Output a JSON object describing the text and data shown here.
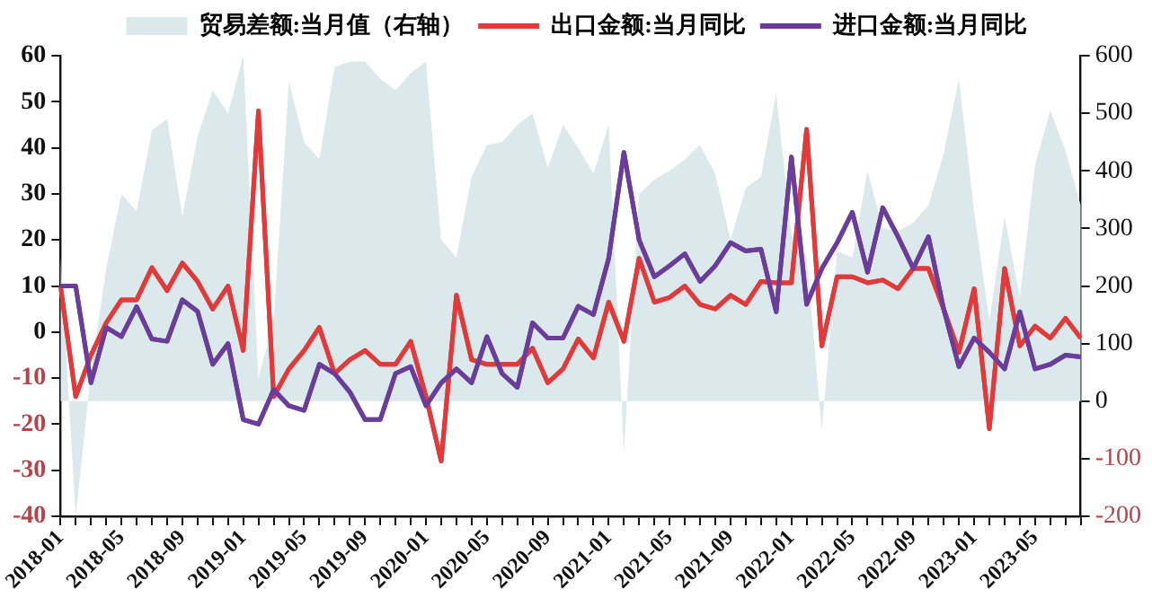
{
  "chart_data": {
    "type": "line",
    "categories": [
      "2018-01",
      null,
      null,
      null,
      "2018-05",
      null,
      null,
      null,
      "2018-09",
      null,
      null,
      null,
      "2019-01",
      null,
      null,
      null,
      "2019-05",
      null,
      null,
      null,
      "2019-09",
      null,
      null,
      null,
      "2020-01",
      null,
      null,
      null,
      "2020-05",
      null,
      null,
      null,
      "2020-09",
      null,
      null,
      null,
      "2021-01",
      null,
      null,
      null,
      "2021-05",
      null,
      null,
      null,
      "2021-09",
      null,
      null,
      null,
      "2022-01",
      null,
      null,
      null,
      "2022-05",
      null,
      null,
      null,
      "2022-09",
      null,
      null,
      null,
      "2023-01",
      null,
      null,
      null,
      "2023-05",
      null,
      null,
      null
    ],
    "series": [
      {
        "name": "贸易差额:当月值（右轴）",
        "type": "area",
        "axis": "y2",
        "color": "#dce9ec",
        "values": [
          250,
          -200,
          50,
          230,
          360,
          330,
          470,
          490,
          320,
          460,
          540,
          500,
          600,
          40,
          140,
          555,
          450,
          420,
          580,
          590,
          590,
          560,
          540,
          570,
          590,
          280,
          250,
          390,
          445,
          450,
          480,
          500,
          405,
          480,
          440,
          395,
          480,
          -90,
          360,
          385,
          400,
          420,
          445,
          395,
          280,
          370,
          390,
          535,
          290,
          250,
          -50,
          260,
          250,
          400,
          300,
          295,
          310,
          340,
          430,
          560,
          330,
          140,
          320,
          180,
          410,
          505,
          435,
          340
        ]
      },
      {
        "name": "出口金额:当月同比",
        "type": "line",
        "color": "#e03a3a",
        "values": [
          10,
          -14,
          -5,
          2,
          7,
          7,
          14,
          9,
          15,
          11,
          5,
          10,
          -4,
          48,
          -14,
          -8,
          -4,
          1,
          -9,
          -6,
          -4,
          -7,
          -7,
          -2,
          -14,
          -28,
          8,
          -6,
          -7,
          -7,
          -7,
          -3.5,
          -11,
          -8,
          -1.5,
          -5.6,
          6.5,
          -2,
          16,
          6.5,
          7.5,
          10,
          6,
          5,
          8,
          6,
          11,
          10.7,
          10.7,
          44,
          -3,
          12,
          12,
          10.7,
          11.3,
          9.4,
          13.8,
          13.8,
          5,
          -4.4,
          9.4,
          -21,
          13.8,
          -3,
          1.3,
          -1.3,
          3,
          -1.3
        ]
      },
      {
        "name": "进口金额:当月同比",
        "type": "line",
        "color": "#6a3d9a",
        "values": [
          10,
          10,
          -11,
          1,
          -1,
          5.5,
          -1.5,
          -2,
          7,
          4.5,
          -7,
          -2.5,
          -19,
          -20,
          -12.5,
          -16,
          -17,
          -7,
          -9,
          -13,
          -19,
          -19,
          -9,
          -7.5,
          -16,
          -11,
          -8,
          -11,
          -1,
          -9,
          -12,
          2,
          -1.3,
          -1.3,
          5.6,
          3.8,
          16,
          39,
          20,
          12,
          14.4,
          17,
          11,
          14.4,
          19.4,
          17.6,
          18,
          4.4,
          38,
          6,
          13.8,
          19.4,
          26,
          13,
          27,
          20.7,
          13.8,
          20.7,
          5,
          -7.5,
          -1.3,
          -4.4,
          -8,
          4.4,
          -8,
          -7,
          -5,
          -5.4
        ]
      }
    ],
    "ylim": [
      -40,
      60
    ],
    "yticks": [
      -40,
      -30,
      -20,
      -10,
      0,
      10,
      20,
      30,
      40,
      50,
      60
    ],
    "y2lim": [
      -200,
      600
    ],
    "y2ticks": [
      -200,
      -100,
      0,
      100,
      200,
      300,
      400,
      500,
      600
    ],
    "grid": false,
    "legend": "top",
    "marker": "none",
    "line_style": "solid"
  }
}
